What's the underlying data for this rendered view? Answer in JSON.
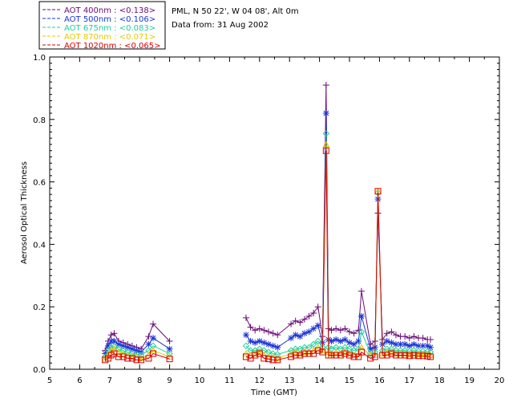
{
  "info": {
    "site": "PML, N 50 22', W 04 08', Alt 0m",
    "date": "Data from: 31 Aug 2002"
  },
  "chart_data": {
    "type": "line",
    "title": "",
    "xlabel": "Time (GMT)",
    "ylabel": "Aerosol Optical Thickness",
    "xlim": [
      5,
      20
    ],
    "ylim": [
      0,
      1.0
    ],
    "xticks": [
      "5",
      "6",
      "7",
      "8",
      "9",
      "10",
      "11",
      "12",
      "13",
      "14",
      "15",
      "16",
      "17",
      "18",
      "19",
      "20"
    ],
    "yticks": [
      "0.0",
      "0.2",
      "0.4",
      "0.6",
      "0.8",
      "1.0"
    ],
    "legend_position": "top-left",
    "grid": false,
    "x": [
      6.85,
      6.95,
      7.05,
      7.15,
      7.3,
      7.45,
      7.6,
      7.75,
      7.9,
      8.05,
      8.3,
      8.45,
      9.0,
      11.55,
      11.7,
      11.85,
      12.0,
      12.15,
      12.3,
      12.45,
      12.6,
      13.05,
      13.2,
      13.35,
      13.5,
      13.65,
      13.8,
      13.95,
      14.1,
      14.22,
      14.3,
      14.4,
      14.55,
      14.7,
      14.85,
      15.0,
      15.15,
      15.3,
      15.4,
      15.7,
      15.85,
      15.95,
      16.1,
      16.25,
      16.4,
      16.55,
      16.7,
      16.85,
      17.0,
      17.15,
      17.3,
      17.45,
      17.6,
      17.7
    ],
    "series": [
      {
        "name": "AOT  400nm : <0.138>",
        "color": "#6a0a78",
        "marker": "plus",
        "values": [
          0.06,
          0.09,
          0.11,
          0.115,
          0.09,
          0.085,
          0.08,
          0.075,
          0.07,
          0.065,
          0.105,
          0.145,
          0.09,
          0.165,
          0.135,
          0.125,
          0.13,
          0.125,
          0.12,
          0.115,
          0.11,
          0.145,
          0.155,
          0.15,
          0.16,
          0.17,
          0.18,
          0.2,
          0.105,
          0.91,
          0.13,
          0.125,
          0.13,
          0.125,
          0.13,
          0.12,
          0.115,
          0.125,
          0.25,
          0.08,
          0.09,
          0.5,
          0.095,
          0.115,
          0.12,
          0.11,
          0.105,
          0.105,
          0.1,
          0.105,
          0.1,
          0.1,
          0.095,
          0.095
        ]
      },
      {
        "name": "AOT  500nm : <0.106>",
        "color": "#1c35d6",
        "marker": "star",
        "values": [
          0.05,
          0.075,
          0.09,
          0.09,
          0.08,
          0.075,
          0.07,
          0.065,
          0.06,
          0.055,
          0.08,
          0.1,
          0.065,
          0.11,
          0.09,
          0.085,
          0.09,
          0.085,
          0.08,
          0.075,
          0.07,
          0.1,
          0.11,
          0.105,
          0.115,
          0.12,
          0.13,
          0.14,
          0.085,
          0.82,
          0.095,
          0.09,
          0.095,
          0.09,
          0.095,
          0.085,
          0.08,
          0.09,
          0.17,
          0.065,
          0.07,
          0.545,
          0.08,
          0.09,
          0.085,
          0.08,
          0.08,
          0.08,
          0.075,
          0.08,
          0.075,
          0.075,
          0.075,
          0.07
        ]
      },
      {
        "name": "AOT  675nm : <0.083>",
        "color": "#1ed09a",
        "marker": "diamond",
        "values": [
          0.04,
          0.06,
          0.07,
          0.072,
          0.065,
          0.06,
          0.055,
          0.05,
          0.048,
          0.045,
          0.06,
          0.075,
          0.05,
          0.075,
          0.06,
          0.06,
          0.065,
          0.06,
          0.055,
          0.05,
          0.048,
          0.06,
          0.065,
          0.065,
          0.07,
          0.07,
          0.08,
          0.09,
          0.07,
          0.755,
          0.07,
          0.065,
          0.07,
          0.065,
          0.07,
          0.065,
          0.06,
          0.065,
          0.12,
          0.05,
          0.055,
          0.565,
          0.06,
          0.065,
          0.065,
          0.06,
          0.06,
          0.06,
          0.058,
          0.06,
          0.058,
          0.058,
          0.057,
          0.055
        ]
      },
      {
        "name": "AOT  870nm : <0.071>",
        "color": "#e6c800",
        "marker": "triangle",
        "values": [
          0.033,
          0.045,
          0.06,
          0.065,
          0.055,
          0.05,
          0.045,
          0.04,
          0.038,
          0.035,
          0.045,
          0.06,
          0.04,
          0.05,
          0.045,
          0.05,
          0.055,
          0.045,
          0.04,
          0.038,
          0.035,
          0.05,
          0.055,
          0.05,
          0.055,
          0.055,
          0.06,
          0.07,
          0.06,
          0.72,
          0.055,
          0.05,
          0.055,
          0.05,
          0.055,
          0.05,
          0.045,
          0.05,
          0.07,
          0.045,
          0.045,
          0.57,
          0.05,
          0.055,
          0.055,
          0.05,
          0.05,
          0.05,
          0.048,
          0.05,
          0.048,
          0.048,
          0.047,
          0.045
        ]
      },
      {
        "name": "AOT 1020nm : <0.065>",
        "color": "#d80000",
        "marker": "square",
        "values": [
          0.03,
          0.035,
          0.045,
          0.05,
          0.04,
          0.04,
          0.035,
          0.035,
          0.03,
          0.03,
          0.035,
          0.05,
          0.033,
          0.04,
          0.035,
          0.045,
          0.05,
          0.035,
          0.033,
          0.03,
          0.03,
          0.04,
          0.045,
          0.045,
          0.05,
          0.05,
          0.05,
          0.06,
          0.055,
          0.7,
          0.045,
          0.045,
          0.045,
          0.045,
          0.05,
          0.045,
          0.04,
          0.04,
          0.055,
          0.035,
          0.04,
          0.57,
          0.045,
          0.045,
          0.05,
          0.045,
          0.045,
          0.045,
          0.043,
          0.045,
          0.043,
          0.043,
          0.042,
          0.04
        ]
      }
    ]
  }
}
